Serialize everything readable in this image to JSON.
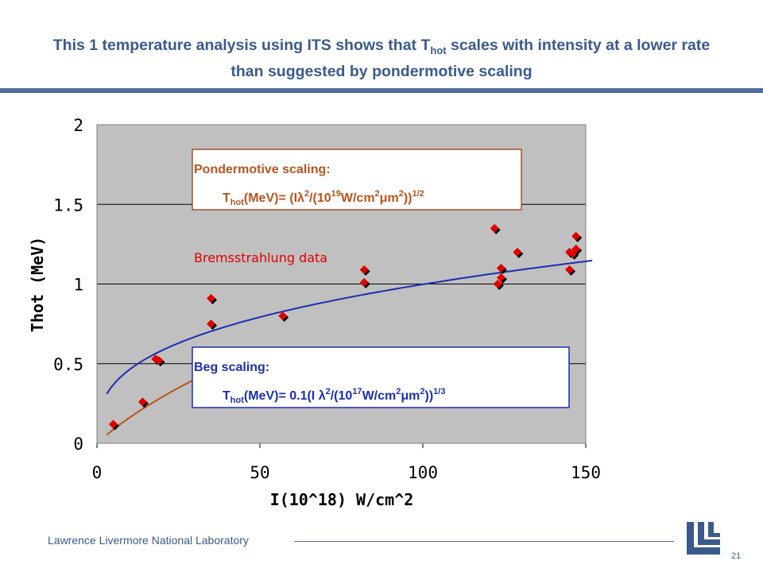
{
  "slide": {
    "title_part1": "This 1 temperature analysis using ITS shows that T",
    "title_sub": "hot",
    "title_part2": " scales with intensity at a lower rate than suggested by pondermotive scaling",
    "footer": "Lawrence Livermore National Laboratory",
    "page_number": "21"
  },
  "colors": {
    "title": "#3a5a8c",
    "plot_bg": "#c0c0c0",
    "marker": "#e00000",
    "marker_shadow": "#000000",
    "pondermotive_curve": "#b8541e",
    "beg_curve": "#1c2fae",
    "pond_box_border": "#a0522d",
    "beg_box_border": "#1c2fae"
  },
  "chart_data": {
    "type": "scatter",
    "xlabel": "I(10^18) W/cm^2",
    "ylabel": "Thot (MeV)",
    "xlim": [
      0,
      150
    ],
    "ylim": [
      0,
      2
    ],
    "xticks": [
      "0",
      "50",
      "100",
      "150"
    ],
    "yticks": [
      "0",
      "0.5",
      "1",
      "1.5",
      "2"
    ],
    "grid": "horizontal",
    "series": [
      {
        "name": "Bremsstrahlung data",
        "points": [
          [
            5,
            0.12
          ],
          [
            14,
            0.26
          ],
          [
            18,
            0.53
          ],
          [
            19,
            0.52
          ],
          [
            35,
            0.91
          ],
          [
            35,
            0.75
          ],
          [
            57,
            0.8
          ],
          [
            82,
            1.09
          ],
          [
            82,
            1.01
          ],
          [
            122,
            1.35
          ],
          [
            123,
            1.0
          ],
          [
            124,
            1.1
          ],
          [
            124,
            1.04
          ],
          [
            129,
            1.2
          ],
          [
            145,
            1.09
          ],
          [
            145,
            1.2
          ],
          [
            146,
            1.19
          ],
          [
            147,
            1.22
          ],
          [
            147,
            1.3
          ]
        ]
      }
    ],
    "curves": [
      {
        "id": "pondermotive",
        "formula": "Thot = 0.511*(sqrt(1 + I/13.7) - 1)",
        "x_range": [
          3,
          32
        ]
      },
      {
        "id": "beg",
        "formula": "Thot = 0.215 * I^(1/3)",
        "x_range": [
          3,
          152
        ]
      }
    ],
    "annotations": {
      "pondermotive_title": "Pondermotive scaling:",
      "pondermotive_formula": {
        "a": "T",
        "a_sub": "hot",
        "b": "(MeV)= (I",
        "lam": "λ",
        "c_sup": "2",
        "d": "/(10",
        "d_sup": "19",
        "e": "W/cm",
        "e_sup": "2",
        "mu": "μ",
        "f": "m",
        "f_sup": "2",
        "g": "))",
        "g_sup": "1/2"
      },
      "bremsstrahlung_label": "Bremsstrahlung data",
      "beg_title": "Beg scaling:",
      "beg_formula": {
        "a": "T",
        "a_sub": "hot",
        "b": "(MeV)= 0.1(I ",
        "lam": "λ",
        "c_sup": "2",
        "d": "/(10",
        "d_sup": "17",
        "e": "W/cm",
        "e_sup": "2",
        "mu": "μ",
        "f": "m",
        "f_sup": "2",
        "g": "))",
        "g_sup": "1/3"
      }
    }
  }
}
